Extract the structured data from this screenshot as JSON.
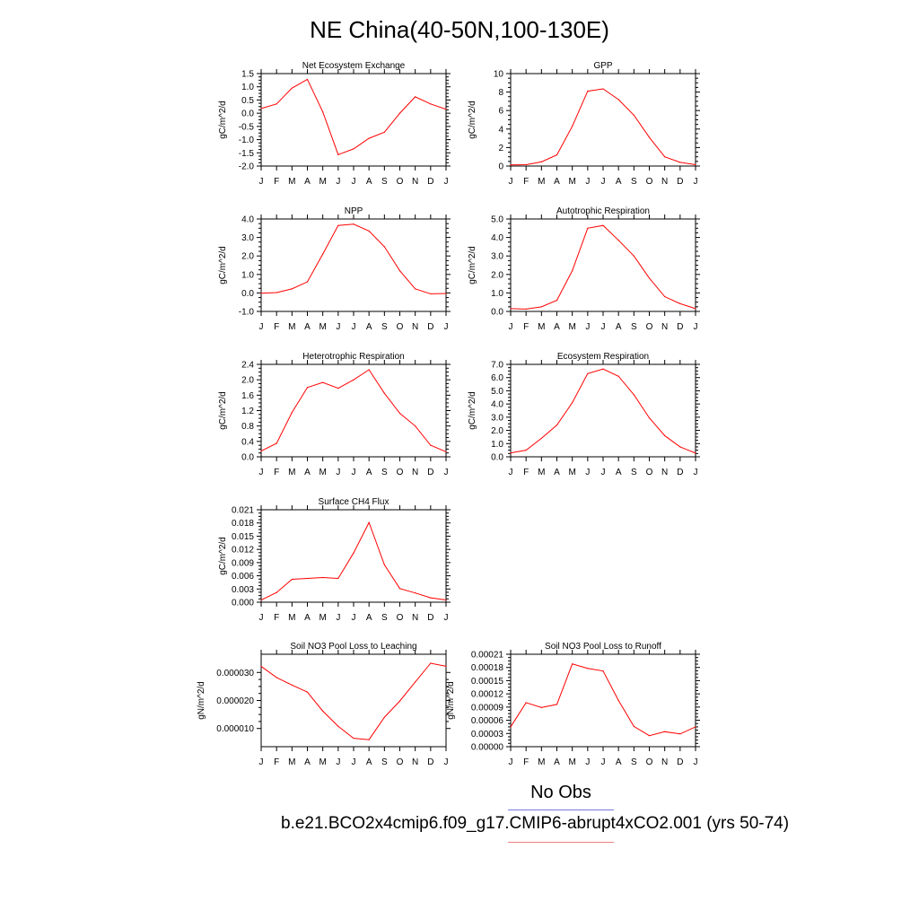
{
  "figure": {
    "title": "NE China(40-50N,100-130E)",
    "months": [
      "J",
      "F",
      "M",
      "A",
      "M",
      "J",
      "J",
      "A",
      "S",
      "O",
      "N",
      "D",
      "J"
    ]
  },
  "legend": {
    "obs_label": "No Obs",
    "obs_color": "#7a7ae0",
    "model_label": "b.e21.BCO2x4cmip6.f09_g17.CMIP6-abrupt4xCO2.001 (yrs 50-74)",
    "model_color": "#f08080"
  },
  "colors": {
    "series": "#ff0000",
    "axis": "#000000"
  },
  "chart_data": [
    {
      "type": "line",
      "title": "Net Ecosystem Exchange",
      "ylabel": "gC/m^2/d",
      "ylim": [
        -2.0,
        1.5
      ],
      "yticks": [
        "-2.0",
        "-1.5",
        "-1.0",
        "-0.5",
        "0.0",
        "0.5",
        "1.0",
        "1.5"
      ],
      "ytick_values": [
        -2.0,
        -1.5,
        -1.0,
        -0.5,
        0.0,
        0.5,
        1.0,
        1.5
      ],
      "categories": [
        "J",
        "F",
        "M",
        "A",
        "M",
        "J",
        "J",
        "A",
        "S",
        "O",
        "N",
        "D",
        "J"
      ],
      "series": [
        {
          "values": [
            0.18,
            0.35,
            0.95,
            1.28,
            0.05,
            -1.57,
            -1.35,
            -0.95,
            -0.72,
            0.0,
            0.62,
            0.35,
            0.15
          ]
        }
      ]
    },
    {
      "type": "line",
      "title": "GPP",
      "ylabel": "gC/m^2/d",
      "ylim": [
        0,
        10
      ],
      "yticks": [
        "0",
        "2",
        "4",
        "6",
        "8",
        "10"
      ],
      "ytick_values": [
        0,
        2,
        4,
        6,
        8,
        10
      ],
      "categories": [
        "J",
        "F",
        "M",
        "A",
        "M",
        "J",
        "J",
        "A",
        "S",
        "O",
        "N",
        "D",
        "J"
      ],
      "series": [
        {
          "values": [
            0.12,
            0.15,
            0.45,
            1.2,
            4.3,
            8.1,
            8.35,
            7.2,
            5.5,
            3.1,
            1.0,
            0.4,
            0.15
          ]
        }
      ]
    },
    {
      "type": "line",
      "title": "NPP",
      "ylabel": "gC/m^2/d",
      "ylim": [
        -1.0,
        4.0
      ],
      "yticks": [
        "-1.0",
        "0.0",
        "1.0",
        "2.0",
        "3.0",
        "4.0"
      ],
      "ytick_values": [
        -1.0,
        0.0,
        1.0,
        2.0,
        3.0,
        4.0
      ],
      "categories": [
        "J",
        "F",
        "M",
        "A",
        "M",
        "J",
        "J",
        "A",
        "S",
        "O",
        "N",
        "D",
        "J"
      ],
      "series": [
        {
          "values": [
            -0.02,
            0.02,
            0.22,
            0.6,
            2.1,
            3.65,
            3.72,
            3.35,
            2.5,
            1.2,
            0.22,
            -0.05,
            -0.03
          ]
        }
      ]
    },
    {
      "type": "line",
      "title": "Autotrophic Respiration",
      "ylabel": "gC/m^2/d",
      "ylim": [
        0.0,
        5.0
      ],
      "yticks": [
        "0.0",
        "1.0",
        "2.0",
        "3.0",
        "4.0",
        "5.0"
      ],
      "ytick_values": [
        0,
        1,
        2,
        3,
        4,
        5
      ],
      "categories": [
        "J",
        "F",
        "M",
        "A",
        "M",
        "J",
        "J",
        "A",
        "S",
        "O",
        "N",
        "D",
        "J"
      ],
      "series": [
        {
          "values": [
            0.15,
            0.13,
            0.25,
            0.6,
            2.2,
            4.5,
            4.65,
            3.85,
            3.0,
            1.8,
            0.8,
            0.42,
            0.15
          ]
        }
      ]
    },
    {
      "type": "line",
      "title": "Heterotrophic Respiration",
      "ylabel": "gC/m^2/d",
      "ylim": [
        0.0,
        2.4
      ],
      "yticks": [
        "0.0",
        "0.4",
        "0.8",
        "1.2",
        "1.6",
        "2.0",
        "2.4"
      ],
      "ytick_values": [
        0,
        0.4,
        0.8,
        1.2,
        1.6,
        2.0,
        2.4
      ],
      "categories": [
        "J",
        "F",
        "M",
        "A",
        "M",
        "J",
        "J",
        "A",
        "S",
        "O",
        "N",
        "D",
        "J"
      ],
      "series": [
        {
          "values": [
            0.15,
            0.35,
            1.15,
            1.8,
            1.93,
            1.78,
            2.0,
            2.26,
            1.65,
            1.13,
            0.8,
            0.3,
            0.13
          ]
        }
      ]
    },
    {
      "type": "line",
      "title": "Ecosystem Respiration",
      "ylabel": "gC/m^2/d",
      "ylim": [
        0.0,
        7.0
      ],
      "yticks": [
        "0.0",
        "1.0",
        "2.0",
        "3.0",
        "4.0",
        "5.0",
        "6.0",
        "7.0"
      ],
      "ytick_values": [
        0,
        1,
        2,
        3,
        4,
        5,
        6,
        7
      ],
      "categories": [
        "J",
        "F",
        "M",
        "A",
        "M",
        "J",
        "J",
        "A",
        "S",
        "O",
        "N",
        "D",
        "J"
      ],
      "series": [
        {
          "values": [
            0.3,
            0.5,
            1.4,
            2.4,
            4.1,
            6.3,
            6.65,
            6.1,
            4.7,
            2.95,
            1.6,
            0.75,
            0.28
          ]
        }
      ]
    },
    {
      "type": "line",
      "title": "Surface CH4 Flux",
      "ylabel": "gC/m^2/d",
      "ylim": [
        0.0,
        0.021
      ],
      "yticks": [
        "0.000",
        "0.003",
        "0.006",
        "0.009",
        "0.012",
        "0.015",
        "0.018",
        "0.021"
      ],
      "ytick_values": [
        0,
        0.003,
        0.006,
        0.009,
        0.012,
        0.015,
        0.018,
        0.021
      ],
      "categories": [
        "J",
        "F",
        "M",
        "A",
        "M",
        "J",
        "J",
        "A",
        "S",
        "O",
        "N",
        "D",
        "J"
      ],
      "series": [
        {
          "values": [
            0.0005,
            0.0022,
            0.0052,
            0.0054,
            0.0056,
            0.0054,
            0.0112,
            0.0181,
            0.0085,
            0.0031,
            0.0021,
            0.001,
            0.0005
          ]
        }
      ]
    },
    {
      "type": "line",
      "title": "Soil NO3 Pool Loss to Leaching",
      "ylabel": "gN/m^2/d",
      "ylim": [
        3.5e-06,
        3.65e-05
      ],
      "yticks": [
        "0.000010",
        "0.000020",
        "0.000030"
      ],
      "ytick_values": [
        1e-05,
        2e-05,
        3e-05
      ],
      "categories": [
        "J",
        "F",
        "M",
        "A",
        "M",
        "J",
        "J",
        "A",
        "S",
        "O",
        "N",
        "D",
        "J"
      ],
      "series": [
        {
          "values": [
            3.22e-05,
            2.82e-05,
            2.55e-05,
            2.3e-05,
            1.62e-05,
            1.08e-05,
            6.5e-06,
            6e-06,
            1.4e-05,
            1.98e-05,
            2.66e-05,
            3.33e-05,
            3.22e-05
          ]
        }
      ]
    },
    {
      "type": "line",
      "title": "Soil NO3 Pool Loss to Runoff",
      "ylabel": "gN/m^2/d",
      "ylim": [
        0.0,
        0.00021
      ],
      "yticks": [
        "0.00000",
        "0.00003",
        "0.00006",
        "0.00009",
        "0.00012",
        "0.00015",
        "0.00018",
        "0.00021"
      ],
      "ytick_values": [
        0,
        3e-05,
        6e-05,
        9e-05,
        0.00012,
        0.00015,
        0.00018,
        0.00021
      ],
      "categories": [
        "J",
        "F",
        "M",
        "A",
        "M",
        "J",
        "J",
        "A",
        "S",
        "O",
        "N",
        "D",
        "J"
      ],
      "series": [
        {
          "values": [
            4.5e-05,
            0.0001,
            8.9e-05,
            9.6e-05,
            0.000188,
            0.000178,
            0.000172,
            0.000105,
            4.6e-05,
            2.5e-05,
            3.4e-05,
            2.9e-05,
            4.5e-05
          ]
        }
      ]
    }
  ]
}
